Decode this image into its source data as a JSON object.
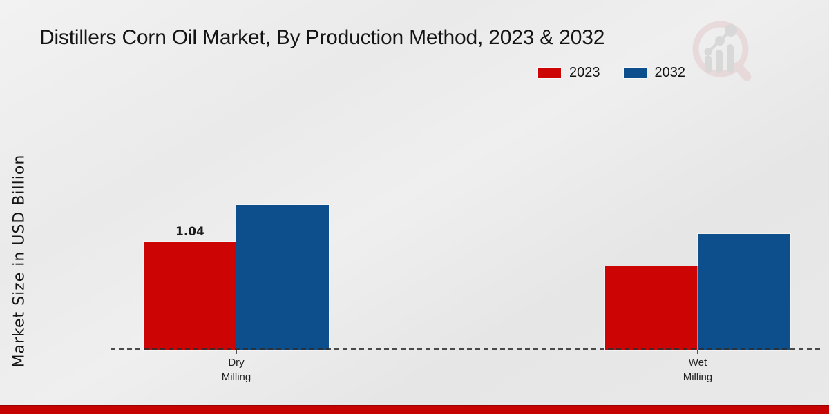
{
  "title": "Distillers Corn Oil Market, By Production Method, 2023 & 2032",
  "y_axis_label": "Market Size in USD Billion",
  "legend": {
    "position": "top-right",
    "items": [
      {
        "label": "2023",
        "color": "#cc0404"
      },
      {
        "label": "2032",
        "color": "#0d4e8d"
      }
    ]
  },
  "chart_data": {
    "type": "bar",
    "categories": [
      "Dry Milling",
      "Wet Milling"
    ],
    "series": [
      {
        "name": "2023",
        "color": "#cc0404",
        "values": [
          1.04,
          0.8
        ]
      },
      {
        "name": "2032",
        "color": "#0d4e8d",
        "values": [
          1.39,
          1.11
        ]
      }
    ],
    "title": "Distillers Corn Oil Market, By Production Method, 2023 & 2032",
    "xlabel": "",
    "ylabel": "Market Size in USD Billion",
    "ylim": [
      0,
      1.6
    ],
    "grid": false,
    "baseline_style": "dashed",
    "legend_position": "top-right",
    "data_labels": [
      {
        "category": "Dry Milling",
        "series": "2023",
        "text": "1.04"
      }
    ]
  },
  "category_labels": [
    {
      "line1": "Dry",
      "line2": "Milling"
    },
    {
      "line1": "Wet",
      "line2": "Milling"
    }
  ],
  "value_label": "1.04",
  "watermark": {
    "name": "bar-chart-magnifier-logo"
  },
  "colors": {
    "bar_2023": "#cc0404",
    "bar_2032": "#0d4e8d",
    "background": "#eaeaea",
    "baseline": "#2d2d2d",
    "footer_band": "#c60303",
    "footer_band_edge": "#9b0000",
    "watermark_pink": "#e4cbcb",
    "watermark_gray": "#c7c7c7"
  }
}
